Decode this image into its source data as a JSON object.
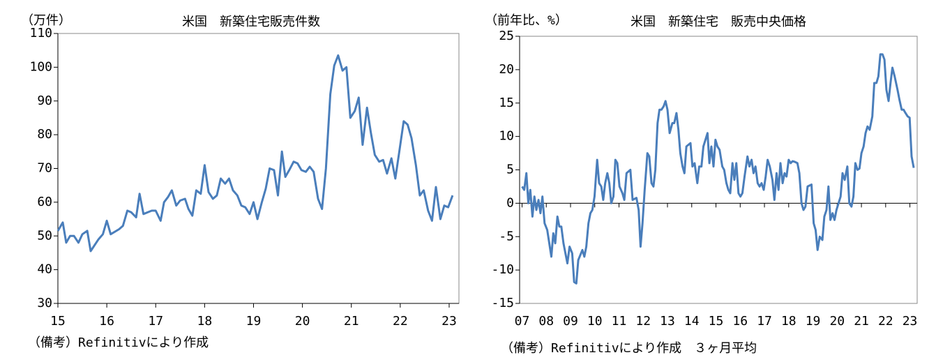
{
  "chart_data": [
    {
      "type": "line",
      "title": "米国　新築住宅販売件数",
      "ylabel": "（万件）",
      "note": "（備考）Refinitivにより作成",
      "xlim": [
        15,
        23.2
      ],
      "xticks": [
        15,
        16,
        17,
        18,
        19,
        20,
        21,
        22,
        23
      ],
      "ylim": [
        30,
        110
      ],
      "yticks": [
        30,
        40,
        50,
        60,
        70,
        80,
        90,
        100,
        110
      ],
      "series": [
        {
          "color": "#4a7ebb",
          "x": [
            15.0,
            15.1,
            15.17,
            15.25,
            15.33,
            15.42,
            15.5,
            15.6,
            15.67,
            15.83,
            15.92,
            16.0,
            16.08,
            16.25,
            16.33,
            16.42,
            16.5,
            16.6,
            16.67,
            16.75,
            16.92,
            17.0,
            17.1,
            17.17,
            17.25,
            17.33,
            17.42,
            17.5,
            17.6,
            17.67,
            17.75,
            17.83,
            17.92,
            18.0,
            18.08,
            18.17,
            18.25,
            18.33,
            18.42,
            18.5,
            18.58,
            18.67,
            18.75,
            18.83,
            18.92,
            19.0,
            19.08,
            19.17,
            19.25,
            19.33,
            19.42,
            19.5,
            19.58,
            19.65,
            19.73,
            19.82,
            19.9,
            19.98,
            20.07,
            20.15,
            20.23,
            20.32,
            20.4,
            20.48,
            20.57,
            20.65,
            20.73,
            20.82,
            20.9,
            20.98,
            21.07,
            21.15,
            21.23,
            21.32,
            21.4,
            21.48,
            21.57,
            21.65,
            21.73,
            21.82,
            21.9,
            21.98,
            22.07,
            22.15,
            22.23,
            22.32,
            22.4,
            22.48,
            22.57,
            22.65,
            22.73,
            22.82,
            22.9,
            22.98,
            23.07
          ],
          "values": [
            51.5,
            54,
            48,
            50,
            50,
            48,
            50.5,
            51.5,
            45.5,
            49,
            50.5,
            54.5,
            50.5,
            52,
            53,
            57.5,
            57,
            55.5,
            62.5,
            56.5,
            57.5,
            57.5,
            54.5,
            60,
            61.5,
            63.5,
            59,
            60.5,
            61,
            58,
            56,
            63.5,
            62.5,
            71,
            63,
            61,
            62,
            67,
            65.5,
            67,
            63.5,
            62,
            59,
            58.5,
            56.5,
            60,
            55,
            60,
            64,
            70,
            69.5,
            62,
            75,
            67.5,
            69.5,
            72,
            71.5,
            69.5,
            69,
            70.5,
            69,
            61,
            58,
            70,
            92,
            100.5,
            103.5,
            99,
            100,
            85,
            87,
            91,
            77,
            88,
            80.5,
            74,
            72,
            72.5,
            68.5,
            73,
            67,
            75,
            84,
            83,
            79,
            71,
            62,
            63.5,
            57.5,
            54.5,
            64.5,
            55,
            59,
            58.5,
            62
          ]
        }
      ]
    },
    {
      "type": "line",
      "title": "米国　新築住宅　販売中央価格",
      "ylabel": "（前年比、%）",
      "note": "（備考）Refinitivにより作成　３ヶ月平均",
      "xlim": [
        6.9,
        23.3
      ],
      "xticks": [
        {
          "value": 7,
          "label": "07"
        },
        {
          "value": 8,
          "label": "08"
        },
        {
          "value": 9,
          "label": "09"
        },
        10,
        11,
        12,
        13,
        14,
        15,
        16,
        17,
        18,
        19,
        20,
        21,
        22,
        23
      ],
      "ylim": [
        -15,
        25
      ],
      "yticks": [
        -15,
        -10,
        -5,
        0,
        5,
        10,
        15,
        20,
        25
      ],
      "series": [
        {
          "color": "#4a7ebb",
          "x": [
            7.0,
            7.09,
            7.18,
            7.26,
            7.34,
            7.43,
            7.51,
            7.59,
            7.68,
            7.76,
            7.84,
            7.93,
            8.04,
            8.21,
            8.29,
            8.37,
            8.46,
            8.54,
            8.62,
            8.71,
            8.87,
            8.96,
            9.07,
            9.15,
            9.24,
            9.32,
            9.49,
            9.57,
            9.65,
            9.74,
            9.82,
            9.9,
            9.99,
            10.1,
            10.18,
            10.27,
            10.35,
            10.43,
            10.52,
            10.6,
            10.68,
            10.77,
            10.85,
            10.93,
            11.02,
            11.14,
            11.22,
            11.31,
            11.47,
            11.56,
            11.72,
            11.81,
            11.89,
            11.97,
            12.06,
            12.17,
            12.25,
            12.34,
            12.42,
            12.5,
            12.59,
            12.67,
            12.75,
            12.84,
            12.92,
            13.0,
            13.09,
            13.2,
            13.28,
            13.37,
            13.45,
            13.53,
            13.62,
            13.7,
            13.78,
            13.95,
            14.03,
            14.12,
            14.23,
            14.31,
            14.4,
            14.48,
            14.65,
            14.73,
            14.81,
            14.9,
            14.98,
            15.06,
            15.15,
            15.26,
            15.34,
            15.43,
            15.51,
            15.59,
            15.68,
            15.76,
            15.84,
            15.93,
            16.01,
            16.09,
            16.18,
            16.3,
            16.38,
            16.47,
            16.55,
            16.63,
            16.72,
            16.8,
            16.88,
            16.97,
            17.05,
            17.13,
            17.22,
            17.33,
            17.41,
            17.5,
            17.58,
            17.66,
            17.75,
            17.83,
            17.91,
            18.0,
            18.08,
            18.16,
            18.25,
            18.36,
            18.44,
            18.53,
            18.61,
            18.69,
            18.78,
            18.94,
            19.03,
            19.11,
            19.19,
            19.28,
            19.39,
            19.47,
            19.56,
            19.64,
            19.72,
            19.81,
            19.89,
            19.97,
            20.14,
            20.22,
            20.31,
            20.42,
            20.5,
            20.59,
            20.67,
            20.75,
            20.84,
            20.92,
            21.0,
            21.09,
            21.17,
            21.25,
            21.34,
            21.45,
            21.53,
            21.62,
            21.7,
            21.78,
            21.87,
            21.95,
            22.03,
            22.12,
            22.2,
            22.28,
            22.37,
            22.49,
            22.57,
            22.66,
            22.74,
            22.82,
            22.91,
            22.99,
            23.07,
            23.16
          ],
          "values": [
            2.5,
            2,
            4.5,
            0,
            2,
            -2,
            1,
            -1,
            0.5,
            -1.5,
            1,
            -3,
            -4,
            -8,
            -4.5,
            -6,
            -2,
            -3.5,
            -3.5,
            -6,
            -9,
            -6.5,
            -7.5,
            -11.8,
            -12,
            -8.5,
            -7,
            -8,
            -6.5,
            -3,
            -1.5,
            -1,
            1,
            6.5,
            3,
            2.5,
            0.5,
            3,
            4.5,
            3,
            0,
            1,
            6.5,
            6,
            2.5,
            1.5,
            0.5,
            4.5,
            5,
            0.5,
            0.8,
            -1,
            -6.5,
            -3,
            2,
            7.5,
            7,
            3,
            2.5,
            5,
            12,
            14,
            14,
            14.5,
            15.3,
            14,
            10.5,
            12,
            12,
            13.5,
            11,
            7.5,
            5.5,
            4.5,
            8.5,
            9,
            5.5,
            6,
            3,
            5.5,
            5.5,
            8.5,
            10.5,
            6,
            8.5,
            5.5,
            9.5,
            8.5,
            8,
            5.5,
            5,
            3,
            2,
            1.5,
            6,
            3.5,
            6,
            1.5,
            1,
            1.5,
            4,
            7,
            5.5,
            6.5,
            4.5,
            5.5,
            3,
            2.5,
            3,
            2,
            4,
            6.5,
            5.5,
            3.5,
            0.5,
            4.5,
            2,
            6,
            3,
            4.5,
            4,
            6.5,
            6,
            6.3,
            6.2,
            6,
            4.5,
            0,
            -1,
            -0.5,
            2.5,
            2.8,
            -3,
            -4,
            -7,
            -5,
            -5.5,
            -2,
            -1,
            2.5,
            -2.5,
            -1.5,
            -2.5,
            -1,
            1,
            4.5,
            3.5,
            5.5,
            0,
            -0.5,
            1,
            6,
            5,
            5.2,
            7.5,
            8.5,
            10.5,
            11.5,
            11,
            13,
            18,
            18,
            19,
            22.3,
            22.3,
            21.5,
            17,
            15.3,
            18,
            20.3,
            19,
            17,
            15.5,
            14,
            14,
            13.5,
            13,
            12.8,
            7,
            5.3
          ]
        }
      ]
    }
  ]
}
